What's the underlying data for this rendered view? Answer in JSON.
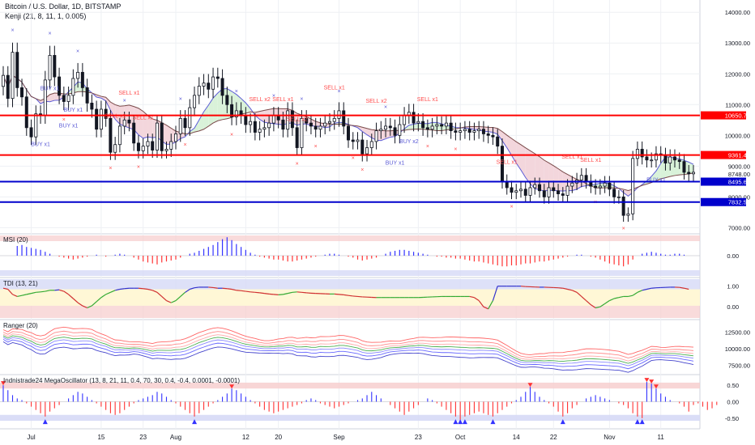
{
  "header": {
    "symbol": "Bitcoin / U.S. Dollar, 1D, BITSTAMP",
    "study": "Kenji (21, 8, 11, 1, 0.005)"
  },
  "colors": {
    "up": "#ffffff",
    "down": "#131722",
    "wick": "#131722",
    "hline_red": "#ff0000",
    "hline_blue": "#0000cc",
    "sell_marker": "#ff4c4c",
    "buy_marker": "#5b5bd6",
    "ribbon_fast": "#5b5bd6",
    "ribbon_slow": "#7a4a4a",
    "ribbon_bull_fill": "#d9f2d9",
    "ribbon_bear_fill": "#f3d6dc",
    "ribbon_blue_fill": "#d6d9f3",
    "zone_red": "#f6cccc",
    "zone_blue": "#d6d9f6",
    "zone_yellow": "#fff7d6",
    "bar_pos": "#3333ff",
    "bar_neg": "#ff3333",
    "bar_neu": "#33aa33"
  },
  "chart_data": [
    {
      "type": "candlestick",
      "title": "Bitcoin / U.S. Dollar, 1D, BITSTAMP",
      "study": "Kenji (21, 8, 11, 1, 0.005)",
      "x_tick_labels": [
        "Jul",
        "15",
        "23",
        "Aug",
        "12",
        "20",
        "Sep",
        "23",
        "Oct",
        "14",
        "22",
        "Nov",
        "11"
      ],
      "y_ticks": [
        7000,
        8000,
        9000,
        10000,
        11000,
        12000,
        13000,
        14000
      ],
      "y_tick_labels": [
        "7000.00",
        "8000.00",
        "9000.00",
        "10000.00",
        "11000.00",
        "12000.00",
        "13000.00",
        "14000.00"
      ],
      "ylim": [
        6800,
        14400
      ],
      "horizontal_lines": [
        {
          "label": "10650.75",
          "value": 10650.75,
          "color": "red"
        },
        {
          "label": "9361.40",
          "value": 9361.4,
          "color": "red"
        },
        {
          "label": "8495.68",
          "value": 8495.68,
          "color": "blue"
        },
        {
          "label": "7832.58",
          "value": 7832.58,
          "color": "blue"
        }
      ],
      "last_price": {
        "label": "8748.00",
        "value": 8748.0
      },
      "close": [
        11950,
        11200,
        12700,
        11550,
        11250,
        10250,
        9950,
        10700,
        10650,
        11800,
        12600,
        11900,
        11300,
        11100,
        11300,
        11850,
        12050,
        11550,
        11050,
        10850,
        10200,
        10850,
        10550,
        9450,
        9700,
        10300,
        10500,
        10400,
        9750,
        9500,
        9650,
        9800,
        9520,
        10400,
        9500,
        9550,
        9800,
        10050,
        10550,
        10250,
        10900,
        11300,
        11600,
        11700,
        11500,
        11900,
        11850,
        11300,
        11000,
        10600,
        10800,
        10650,
        10350,
        10450,
        10100,
        10200,
        10250,
        10400,
        10650,
        10500,
        10200,
        10800,
        10250,
        9600,
        10550,
        10400,
        10300,
        10200,
        10300,
        10400,
        10450,
        10550,
        10800,
        10300,
        9850,
        9800,
        9850,
        9400,
        9600,
        9800,
        10150,
        10200,
        10300,
        10250,
        10000,
        10350,
        10650,
        10750,
        10400,
        10450,
        10250,
        10200,
        10300,
        10350,
        10300,
        10400,
        10150,
        10100,
        10150,
        10200,
        10100,
        10150,
        10200,
        10050,
        10000,
        9950,
        9650,
        8500,
        8300,
        8150,
        8200,
        8250,
        8050,
        8300,
        8400,
        8200,
        8000,
        8300,
        8200,
        8100,
        8050,
        8350,
        8450,
        8550,
        8700,
        8500,
        8350,
        8300,
        8350,
        8450,
        8250,
        8000,
        8000,
        7400,
        7450,
        9250,
        9550,
        9300,
        9200,
        9200,
        9400,
        9350,
        9100,
        9300,
        9200,
        9150,
        8800,
        8750,
        8800
      ],
      "annotations": [
        "SELL x1",
        "SELL x1",
        "SELL x1",
        "SELL x2",
        "SELL x1",
        "SELL x2",
        "SELL x1",
        "SELL x2",
        "SELL x1",
        "SELL x1",
        "SELL x1",
        "SELL x1",
        "BUY x1",
        "BUY x1",
        "BUY x1",
        "BUY x1",
        "BUY x1",
        "BUY x2",
        "BUY x1"
      ]
    },
    {
      "type": "bar",
      "title": "MSI (20)",
      "y_tick_labels": [
        "0.00"
      ],
      "ylim": [
        -1,
        1
      ],
      "values": [
        0.0,
        0.0,
        0.0,
        0.5,
        0.55,
        0.45,
        0.4,
        0.35,
        0.3,
        0.2,
        0.1,
        0.0,
        -0.05,
        -0.1,
        -0.15,
        -0.2,
        -0.15,
        -0.1,
        -0.05,
        0.0,
        0.05,
        0.0,
        -0.05,
        0.0,
        0.05,
        0.1,
        0.05,
        0.0,
        -0.1,
        -0.2,
        -0.3,
        -0.35,
        -0.4,
        -0.45,
        -0.35,
        -0.3,
        -0.25,
        -0.2,
        -0.1,
        0.0,
        0.1,
        0.15,
        0.25,
        0.35,
        0.45,
        0.55,
        0.7,
        0.85,
        0.95,
        0.8,
        0.6,
        0.45,
        0.3,
        0.15,
        0.05,
        -0.05,
        -0.1,
        -0.15,
        -0.2,
        -0.2,
        -0.25,
        -0.3,
        -0.3,
        -0.25,
        -0.2,
        -0.15,
        -0.1,
        -0.05,
        0.0,
        0.05,
        0.1,
        0.1,
        0.05,
        0.0,
        -0.05,
        -0.1,
        -0.2,
        -0.25,
        -0.2,
        -0.15,
        -0.1,
        0.0,
        0.1,
        0.2,
        0.25,
        0.3,
        0.3,
        0.25,
        0.2,
        0.15,
        0.1,
        0.05,
        0.0,
        -0.05,
        -0.05,
        -0.1,
        -0.1,
        -0.15,
        -0.15,
        -0.2,
        -0.25,
        -0.3,
        -0.3,
        -0.35,
        -0.4,
        -0.45,
        -0.5,
        -0.55,
        -0.55,
        -0.5,
        -0.5,
        -0.45,
        -0.4,
        -0.4,
        -0.35,
        -0.3,
        -0.3,
        -0.25,
        -0.2,
        -0.15,
        -0.1,
        -0.05,
        0.0,
        0.05,
        0.05,
        0.0,
        -0.05,
        -0.1,
        -0.2,
        -0.3,
        -0.4,
        -0.45,
        -0.5,
        -0.55,
        -0.45,
        -0.2,
        0.0,
        0.1,
        0.15,
        0.2,
        0.15,
        0.1,
        0.05,
        0.05,
        0.1,
        0.1,
        0.05,
        0.0,
        0.0
      ]
    },
    {
      "type": "line",
      "title": "TDI (13, 21)",
      "y_tick_labels": [
        "1.00",
        "0.00"
      ],
      "ylim": [
        -0.5,
        1.3
      ],
      "values": [
        0.9,
        0.85,
        0.6,
        0.5,
        0.55,
        0.6,
        0.65,
        0.7,
        0.72,
        0.75,
        0.8,
        0.8,
        0.82,
        0.75,
        0.6,
        0.4,
        0.2,
        0.05,
        -0.05,
        0.05,
        0.25,
        0.45,
        0.6,
        0.7,
        0.8,
        0.85,
        0.88,
        0.9,
        0.9,
        0.9,
        0.88,
        0.85,
        0.8,
        0.7,
        0.5,
        0.3,
        0.2,
        0.3,
        0.5,
        0.7,
        0.85,
        0.92,
        0.95,
        0.95,
        0.95,
        0.93,
        0.9,
        0.9,
        0.88,
        0.85,
        0.8,
        0.78,
        0.75,
        0.72,
        0.7,
        0.68,
        0.65,
        0.62,
        0.6,
        0.58,
        0.6,
        0.65,
        0.7,
        0.72,
        0.7,
        0.68,
        0.66,
        0.65,
        0.64,
        0.63,
        0.62,
        0.62,
        0.6,
        0.58,
        0.55,
        0.52,
        0.5,
        0.48,
        0.47,
        0.46,
        0.45,
        0.45,
        0.45,
        0.45,
        0.45,
        0.45,
        0.45,
        0.45,
        0.45,
        0.45,
        0.46,
        0.47,
        0.48,
        0.49,
        0.5,
        0.5,
        0.5,
        0.5,
        0.5,
        0.5,
        0.5,
        0.45,
        0.3,
        0.0,
        -0.1,
        0.3,
        1.0,
        1.0,
        1.0,
        1.0,
        1.0,
        1.0,
        0.98,
        0.97,
        0.96,
        0.95,
        0.95,
        0.94,
        0.93,
        0.92,
        0.9,
        0.85,
        0.8,
        0.7,
        0.5,
        0.3,
        0.1,
        -0.05,
        0.0,
        0.15,
        0.3,
        0.4,
        0.45,
        0.5,
        0.5,
        0.55,
        0.7,
        0.8,
        0.85,
        0.9,
        0.92,
        0.93,
        0.94,
        0.95,
        0.95,
        0.94,
        0.9,
        0.85
      ]
    },
    {
      "type": "line",
      "title": "Ranger (20)",
      "y_tick_labels": [
        "12500.00",
        "10000.00",
        "7500.00"
      ],
      "y_ticks": [
        12500,
        10000,
        7500
      ],
      "ylim": [
        6500,
        14000
      ],
      "series": [
        {
          "offset": 1500,
          "color": "#ff6666"
        },
        {
          "offset": 900,
          "color": "#ff8888"
        },
        {
          "offset": 400,
          "color": "#ffaaaa"
        },
        {
          "offset": 0,
          "color": "#4caf50"
        },
        {
          "offset": -400,
          "color": "#8888ff"
        },
        {
          "offset": -900,
          "color": "#6666ff"
        },
        {
          "offset": -1500,
          "color": "#4444cc"
        }
      ]
    },
    {
      "type": "bar",
      "title": "Indnistrade24 MegaOscillator (13, 8, 21, 11, 0.4, 70, 30, 0.4, -0.4, 0.0001, -0.0001)",
      "y_tick_labels": [
        "0.50",
        "0.00",
        "-0.50"
      ],
      "y_ticks": [
        0.5,
        0,
        -0.5
      ],
      "ylim": [
        -0.75,
        0.75
      ],
      "values": [
        0.5,
        0.35,
        0.2,
        0.1,
        0.05,
        -0.05,
        -0.15,
        -0.25,
        -0.35,
        -0.45,
        -0.3,
        -0.2,
        -0.1,
        0.0,
        0.1,
        0.2,
        0.3,
        0.25,
        0.15,
        0.05,
        -0.05,
        -0.15,
        -0.25,
        -0.35,
        -0.4,
        -0.35,
        -0.25,
        -0.15,
        -0.05,
        0.05,
        0.1,
        0.15,
        0.2,
        0.3,
        0.25,
        0.15,
        0.05,
        -0.05,
        -0.15,
        -0.25,
        -0.35,
        -0.45,
        -0.35,
        -0.25,
        -0.15,
        -0.05,
        0.05,
        0.15,
        0.25,
        0.4,
        0.35,
        0.25,
        0.15,
        0.05,
        -0.05,
        -0.15,
        -0.25,
        -0.3,
        -0.35,
        -0.3,
        -0.25,
        -0.2,
        -0.15,
        -0.1,
        -0.05,
        0.05,
        0.1,
        0.05,
        -0.05,
        -0.1,
        -0.15,
        -0.2,
        -0.15,
        -0.1,
        -0.05,
        0.0,
        0.05,
        0.1,
        0.2,
        0.3,
        0.2,
        0.1,
        0.0,
        -0.1,
        -0.2,
        -0.3,
        -0.4,
        -0.3,
        -0.2,
        -0.1,
        0.0,
        0.1,
        0.05,
        -0.05,
        -0.15,
        -0.25,
        -0.35,
        -0.45,
        -0.55,
        -0.45,
        -0.4,
        -0.35,
        -0.3,
        -0.35,
        -0.4,
        -0.45,
        -0.35,
        -0.25,
        -0.15,
        -0.05,
        0.05,
        0.15,
        0.3,
        0.45,
        0.3,
        0.15,
        0.05,
        -0.05,
        -0.15,
        -0.3,
        -0.45,
        -0.35,
        -0.2,
        -0.1,
        0.0,
        0.1,
        0.15,
        0.2,
        0.15,
        0.1,
        0.05,
        0.0,
        -0.05,
        -0.1,
        -0.2,
        -0.35,
        -0.45,
        -0.5,
        0.6,
        0.55,
        0.4,
        0.25,
        0.15,
        0.05,
        0.0,
        -0.05,
        -0.15,
        -0.3,
        -0.1,
        -0.05,
        -0.15,
        -0.25,
        -0.2,
        -0.1
      ]
    }
  ]
}
